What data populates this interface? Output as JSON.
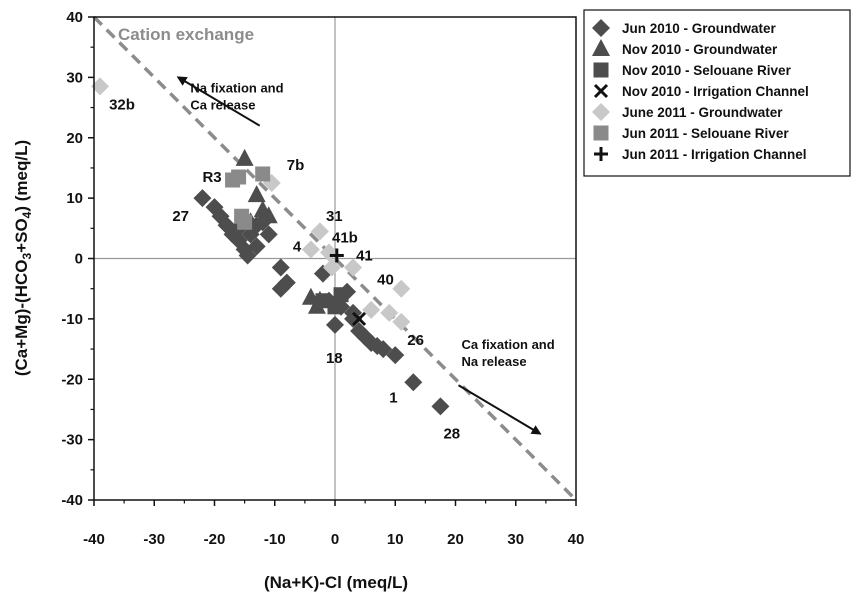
{
  "chart_data": {
    "type": "scatter",
    "xlabel": "(Na+K)-Cl (meq/L)",
    "ylabel_parts": [
      "(Ca+Mg)-(HCO",
      "3",
      "+SO",
      "4",
      ") (meq/L)"
    ],
    "xlim": [
      -40,
      40
    ],
    "ylim": [
      -40,
      40
    ],
    "xticks": [
      -40,
      -30,
      -20,
      -10,
      0,
      10,
      20,
      30,
      40
    ],
    "yticks": [
      -40,
      -30,
      -20,
      -10,
      0,
      10,
      20,
      30,
      40
    ],
    "reference_line": {
      "label": "Cation exchange",
      "from": [
        -40,
        40
      ],
      "to": [
        40,
        -40
      ],
      "color": "#8c8c8c"
    },
    "zero_lines": true,
    "annotations": [
      {
        "lines": [
          "Na fixation and",
          "Ca release"
        ],
        "at": [
          -24,
          27.5
        ],
        "arrow_from": [
          -12.5,
          22
        ],
        "arrow_to": [
          -26,
          30
        ]
      },
      {
        "lines": [
          "Ca fixation and",
          "Na release"
        ],
        "at": [
          21,
          -15
        ],
        "arrow_from": [
          20.5,
          -21
        ],
        "arrow_to": [
          34,
          -29
        ]
      }
    ],
    "point_labels": [
      {
        "text": "32b",
        "x": -37.5,
        "y": 25.5
      },
      {
        "text": "R3",
        "x": -22,
        "y": 13.5
      },
      {
        "text": "7b",
        "x": -8,
        "y": 15.5
      },
      {
        "text": "27",
        "x": -27,
        "y": 7
      },
      {
        "text": "31",
        "x": -1.5,
        "y": 7
      },
      {
        "text": "41b",
        "x": -0.5,
        "y": 3.5
      },
      {
        "text": "4",
        "x": -7,
        "y": 2
      },
      {
        "text": "41",
        "x": 3.5,
        "y": 0.5
      },
      {
        "text": "40",
        "x": 7,
        "y": -3.5
      },
      {
        "text": "26",
        "x": 12,
        "y": -13.5
      },
      {
        "text": "18",
        "x": -1.5,
        "y": -16.5
      },
      {
        "text": "1",
        "x": 9,
        "y": -23
      },
      {
        "text": "28",
        "x": 18,
        "y": -29
      }
    ],
    "legend_position": "top-right",
    "series": [
      {
        "name": "Jun 2010 - Groundwater",
        "marker": "diamond",
        "color": "#4d4d4d",
        "points": [
          [
            -22,
            10
          ],
          [
            -20,
            8.5
          ],
          [
            -19,
            7
          ],
          [
            -18,
            5.5
          ],
          [
            -17,
            4
          ],
          [
            -16,
            3
          ],
          [
            -15,
            1.5
          ],
          [
            -14.5,
            0.5
          ],
          [
            -13,
            2
          ],
          [
            -16,
            5
          ],
          [
            -14,
            4
          ],
          [
            -13,
            5.5
          ],
          [
            -12,
            6
          ],
          [
            -11,
            4
          ],
          [
            -9,
            -1.5
          ],
          [
            -8,
            -4
          ],
          [
            -9,
            -5
          ],
          [
            -2,
            -2.5
          ],
          [
            -1,
            -7
          ],
          [
            0,
            -11
          ],
          [
            2,
            -5.5
          ],
          [
            3,
            -10
          ],
          [
            4,
            -12
          ],
          [
            5,
            -13
          ],
          [
            6,
            -14
          ],
          [
            7,
            -14.5
          ],
          [
            8,
            -15
          ],
          [
            10,
            -16
          ],
          [
            13,
            -20.5
          ],
          [
            17.5,
            -24.5
          ],
          [
            1,
            -8
          ],
          [
            3,
            -9
          ]
        ]
      },
      {
        "name": "Nov 2010 - Groundwater",
        "marker": "triangle",
        "color": "#4d4d4d",
        "points": [
          [
            -15,
            16.5
          ],
          [
            -13,
            10.5
          ],
          [
            -12,
            8
          ],
          [
            -11,
            7
          ],
          [
            -14,
            6
          ],
          [
            -4,
            -6.5
          ],
          [
            -3,
            -8
          ],
          [
            -2.5,
            -7
          ]
        ]
      },
      {
        "name": "Nov 2010 - Selouane River",
        "marker": "square",
        "color": "#4d4d4d",
        "points": [
          [
            -2,
            -7
          ],
          [
            0,
            -8
          ],
          [
            1,
            -6
          ]
        ]
      },
      {
        "name": "Nov 2010 - Irrigation Channel",
        "marker": "x",
        "color": "#111111",
        "points": [
          [
            4,
            -10
          ]
        ]
      },
      {
        "name": "June 2011 - Groundwater",
        "marker": "diamond",
        "color": "#c8c8c8",
        "points": [
          [
            -39,
            28.5
          ],
          [
            -10.5,
            12.5
          ],
          [
            -2.5,
            4.5
          ],
          [
            -4,
            1.5
          ],
          [
            -1,
            1
          ],
          [
            -0.5,
            -1.5
          ],
          [
            3,
            -1.5
          ],
          [
            11,
            -5
          ],
          [
            6,
            -8.5
          ],
          [
            9,
            -9
          ],
          [
            11,
            -10.5
          ]
        ]
      },
      {
        "name": "Jun 2011 - Selouane River",
        "marker": "square",
        "color": "#8a8a8a",
        "points": [
          [
            -17,
            13
          ],
          [
            -16,
            13.5
          ],
          [
            -12,
            14
          ],
          [
            -15.5,
            7
          ],
          [
            -15,
            6
          ]
        ]
      },
      {
        "name": "Jun  2011 - Irrigation Channel",
        "marker": "plus",
        "color": "#111111",
        "points": [
          [
            0.3,
            0.5
          ]
        ]
      }
    ]
  }
}
